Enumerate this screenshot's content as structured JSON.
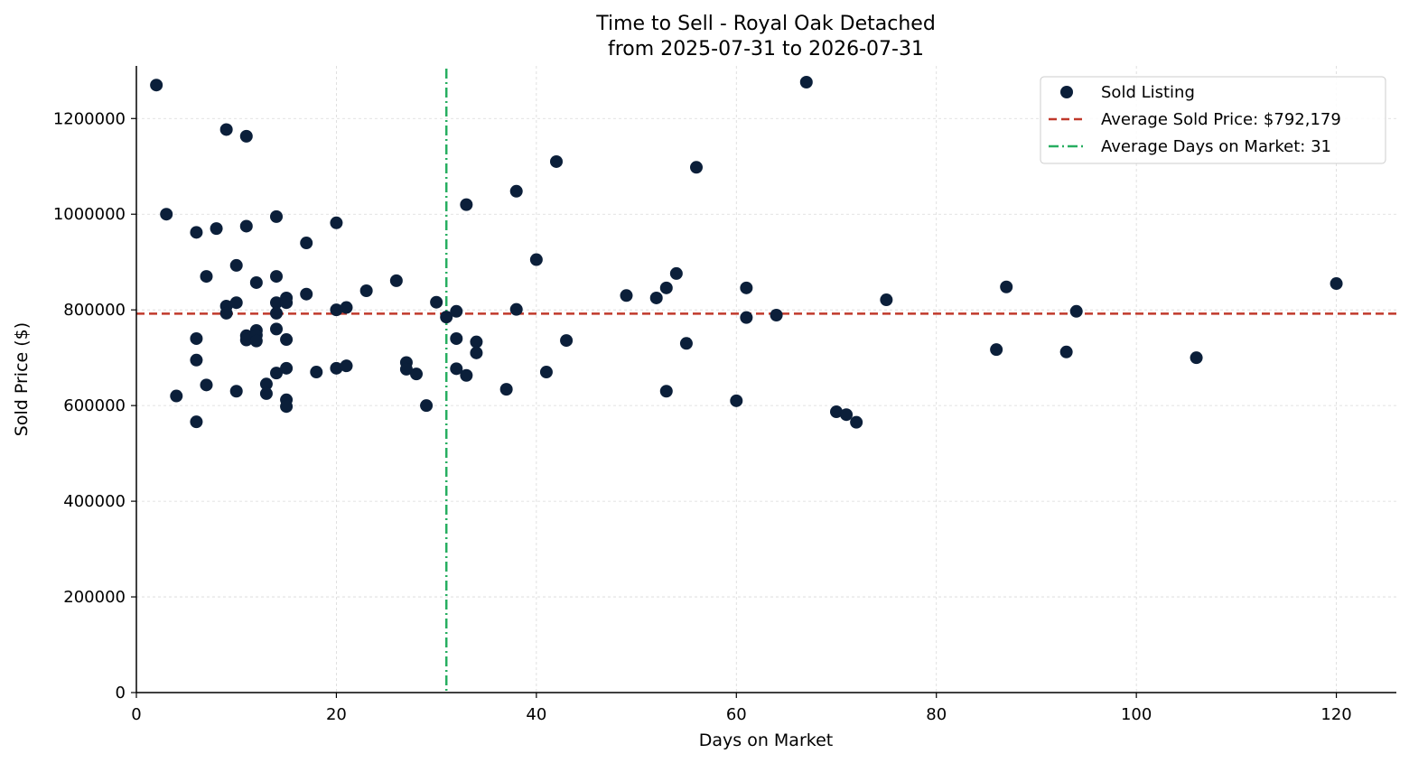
{
  "chart_data": {
    "type": "scatter",
    "title": "Time to Sell - Royal Oak Detached",
    "subtitle": "from 2025-07-31 to 2026-07-31",
    "xlabel": "Days on Market",
    "ylabel": "Sold Price ($)",
    "xlim": [
      0,
      126
    ],
    "ylim": [
      0,
      1310000
    ],
    "xticks": [
      0,
      20,
      40,
      60,
      80,
      100,
      120
    ],
    "yticks": [
      0,
      200000,
      400000,
      600000,
      800000,
      1000000,
      1200000
    ],
    "grid": true,
    "legend_position": "top-right",
    "colors": {
      "points": "#0b1f3a",
      "avg_price_line": "#c0392b",
      "avg_days_line": "#27ae60"
    },
    "average_price": 792179,
    "average_days": 31,
    "legend": [
      "Sold Listing",
      "Average Sold Price: $792,179",
      "Average Days on Market: 31"
    ],
    "series": [
      {
        "name": "Sold Listing",
        "points": [
          [
            2,
            1270000
          ],
          [
            3,
            1000000
          ],
          [
            4,
            620000
          ],
          [
            6,
            962000
          ],
          [
            6,
            740000
          ],
          [
            6,
            695000
          ],
          [
            6,
            566000
          ],
          [
            7,
            870000
          ],
          [
            7,
            643000
          ],
          [
            8,
            970000
          ],
          [
            9,
            1177000
          ],
          [
            9,
            808000
          ],
          [
            9,
            793000
          ],
          [
            10,
            893000
          ],
          [
            10,
            815000
          ],
          [
            10,
            630000
          ],
          [
            11,
            1163000
          ],
          [
            11,
            975000
          ],
          [
            11,
            746000
          ],
          [
            11,
            737000
          ],
          [
            12,
            857000
          ],
          [
            12,
            757000
          ],
          [
            12,
            747000
          ],
          [
            12,
            735000
          ],
          [
            13,
            645000
          ],
          [
            13,
            625000
          ],
          [
            14,
            995000
          ],
          [
            14,
            870000
          ],
          [
            14,
            815000
          ],
          [
            14,
            793000
          ],
          [
            14,
            760000
          ],
          [
            14,
            668000
          ],
          [
            15,
            825000
          ],
          [
            15,
            815000
          ],
          [
            15,
            738000
          ],
          [
            15,
            678000
          ],
          [
            15,
            612000
          ],
          [
            15,
            598000
          ],
          [
            17,
            940000
          ],
          [
            17,
            833000
          ],
          [
            18,
            670000
          ],
          [
            20,
            982000
          ],
          [
            20,
            800000
          ],
          [
            20,
            678000
          ],
          [
            21,
            805000
          ],
          [
            21,
            683000
          ],
          [
            23,
            840000
          ],
          [
            26,
            861000
          ],
          [
            27,
            690000
          ],
          [
            27,
            676000
          ],
          [
            28,
            666000
          ],
          [
            29,
            600000
          ],
          [
            30,
            816000
          ],
          [
            31,
            785000
          ],
          [
            32,
            797000
          ],
          [
            32,
            740000
          ],
          [
            32,
            677000
          ],
          [
            33,
            1020000
          ],
          [
            33,
            663000
          ],
          [
            34,
            733000
          ],
          [
            34,
            710000
          ],
          [
            37,
            634000
          ],
          [
            38,
            1048000
          ],
          [
            38,
            801000
          ],
          [
            40,
            905000
          ],
          [
            41,
            670000
          ],
          [
            42,
            1110000
          ],
          [
            43,
            736000
          ],
          [
            49,
            830000
          ],
          [
            52,
            825000
          ],
          [
            53,
            846000
          ],
          [
            53,
            630000
          ],
          [
            54,
            876000
          ],
          [
            55,
            730000
          ],
          [
            56,
            1098000
          ],
          [
            60,
            610000
          ],
          [
            61,
            846000
          ],
          [
            61,
            784000
          ],
          [
            64,
            789000
          ],
          [
            67,
            1276000
          ],
          [
            70,
            587000
          ],
          [
            71,
            581000
          ],
          [
            72,
            565000
          ],
          [
            75,
            821000
          ],
          [
            86,
            717000
          ],
          [
            87,
            848000
          ],
          [
            93,
            712000
          ],
          [
            94,
            797000
          ],
          [
            106,
            700000
          ],
          [
            120,
            855000
          ]
        ]
      }
    ]
  }
}
